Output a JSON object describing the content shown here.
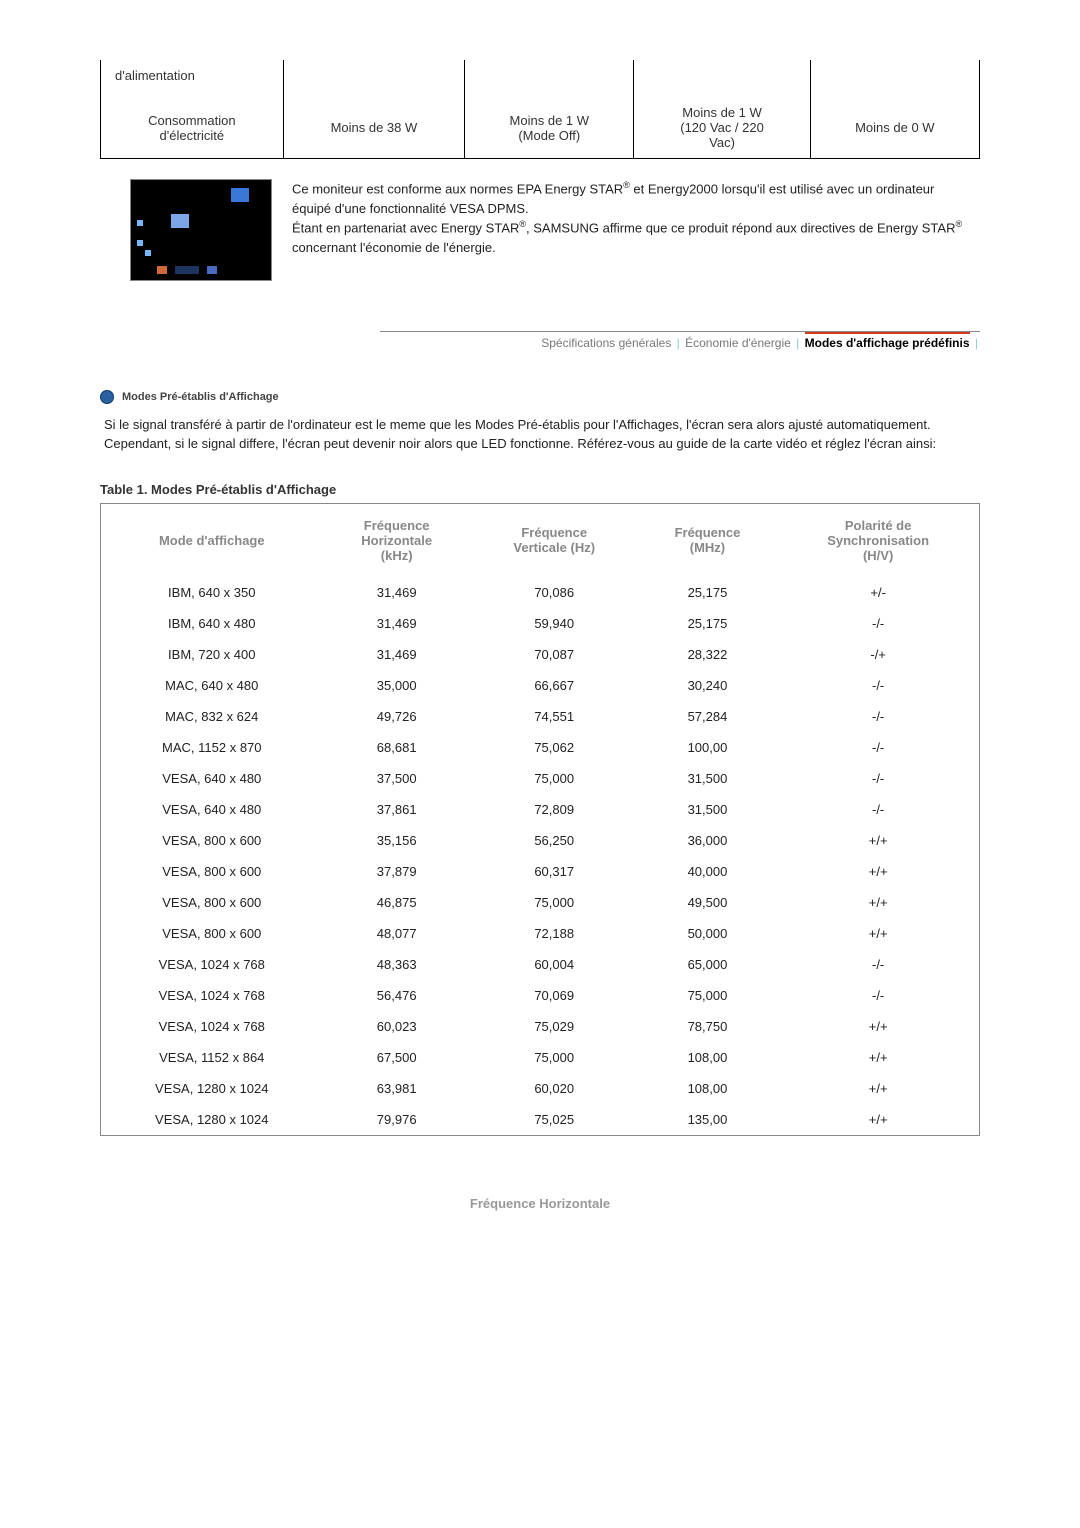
{
  "power_table": {
    "row1": {
      "c1": "d'alimentation",
      "c2": "",
      "c3": "",
      "c4": "",
      "c5": ""
    },
    "row2": {
      "c1a": "Consommation",
      "c1b": "d'électricité",
      "c2": "Moins de 38 W",
      "c3a": "Moins de 1 W",
      "c3b": "(Mode Off)",
      "c4a": "Moins de 1 W",
      "c4b": "(120 Vac / 220",
      "c4c": "Vac)",
      "c5": "Moins de 0 W"
    }
  },
  "energy_text": {
    "p1a": "Ce moniteur est conforme aux normes EPA Energy STAR",
    "p1b": " et Energy2000 lorsqu'il est utilisé avec un ordinateur équipé d'une fonctionnalité VESA DPMS.",
    "p2a": "Étant en partenariat avec Energy STAR",
    "p2b": ", SAMSUNG affirme que ce produit répond aux directives de Energy STAR",
    "p2c": " concernant l'économie de l'énergie."
  },
  "tabs": {
    "t1": "Spécifications générales",
    "t2": "Économie d'énergie",
    "t3": "Modes d'affichage prédéfinis"
  },
  "section_title": "Modes Pré-établis d'Affichage",
  "intro": "Si le signal transféré à partir de l'ordinateur est le meme que les Modes Pré-établis pour l'Affichages, l'écran sera alors ajusté automatiquement. Cependant, si le signal differe, l'écran peut devenir noir alors que LED fonctionne. Référez-vous au guide de la carte vidéo et réglez l'écran ainsi:",
  "table_title": "Table 1. Modes Pré-établis d'Affichage",
  "modes_header": {
    "c1": "Mode d'affichage",
    "c2a": "Fréquence",
    "c2b": "Horizontale",
    "c2c": "(kHz)",
    "c3a": "Fréquence",
    "c3b": "Verticale (Hz)",
    "c4a": "Fréquence",
    "c4b": "(MHz)",
    "c5a": "Polarité de",
    "c5b": "Synchronisation",
    "c5c": "(H/V)"
  },
  "modes_rows": [
    {
      "c1": "IBM, 640 x 350",
      "c2": "31,469",
      "c3": "70,086",
      "c4": "25,175",
      "c5": "+/-"
    },
    {
      "c1": "IBM, 640 x 480",
      "c2": "31,469",
      "c3": "59,940",
      "c4": "25,175",
      "c5": "-/-"
    },
    {
      "c1": "IBM, 720 x 400",
      "c2": "31,469",
      "c3": "70,087",
      "c4": "28,322",
      "c5": "-/+"
    },
    {
      "c1": "MAC, 640 x 480",
      "c2": "35,000",
      "c3": "66,667",
      "c4": "30,240",
      "c5": "-/-"
    },
    {
      "c1": "MAC, 832 x 624",
      "c2": "49,726",
      "c3": "74,551",
      "c4": "57,284",
      "c5": "-/-"
    },
    {
      "c1": "MAC, 1152 x 870",
      "c2": "68,681",
      "c3": "75,062",
      "c4": "100,00",
      "c5": "-/-"
    },
    {
      "c1": "VESA, 640 x 480",
      "c2": "37,500",
      "c3": "75,000",
      "c4": "31,500",
      "c5": "-/-"
    },
    {
      "c1": "VESA, 640 x 480",
      "c2": "37,861",
      "c3": "72,809",
      "c4": "31,500",
      "c5": "-/-"
    },
    {
      "c1": "VESA, 800 x 600",
      "c2": "35,156",
      "c3": "56,250",
      "c4": "36,000",
      "c5": "+/+"
    },
    {
      "c1": "VESA, 800 x 600",
      "c2": "37,879",
      "c3": "60,317",
      "c4": "40,000",
      "c5": "+/+"
    },
    {
      "c1": "VESA, 800 x 600",
      "c2": "46,875",
      "c3": "75,000",
      "c4": "49,500",
      "c5": "+/+"
    },
    {
      "c1": "VESA, 800 x 600",
      "c2": "48,077",
      "c3": "72,188",
      "c4": "50,000",
      "c5": "+/+"
    },
    {
      "c1": "VESA, 1024 x 768",
      "c2": "48,363",
      "c3": "60,004",
      "c4": "65,000",
      "c5": "-/-"
    },
    {
      "c1": "VESA, 1024 x 768",
      "c2": "56,476",
      "c3": "70,069",
      "c4": "75,000",
      "c5": "-/-"
    },
    {
      "c1": "VESA, 1024 x 768",
      "c2": "60,023",
      "c3": "75,029",
      "c4": "78,750",
      "c5": "+/+"
    },
    {
      "c1": "VESA, 1152 x 864",
      "c2": "67,500",
      "c3": "75,000",
      "c4": "108,00",
      "c5": "+/+"
    },
    {
      "c1": "VESA, 1280 x 1024",
      "c2": "63,981",
      "c3": "60,020",
      "c4": "108,00",
      "c5": "+/+"
    },
    {
      "c1": "VESA, 1280 x 1024",
      "c2": "79,976",
      "c3": "75,025",
      "c4": "135,00",
      "c5": "+/+"
    }
  ],
  "footer_label": "Fréquence Horizontale"
}
